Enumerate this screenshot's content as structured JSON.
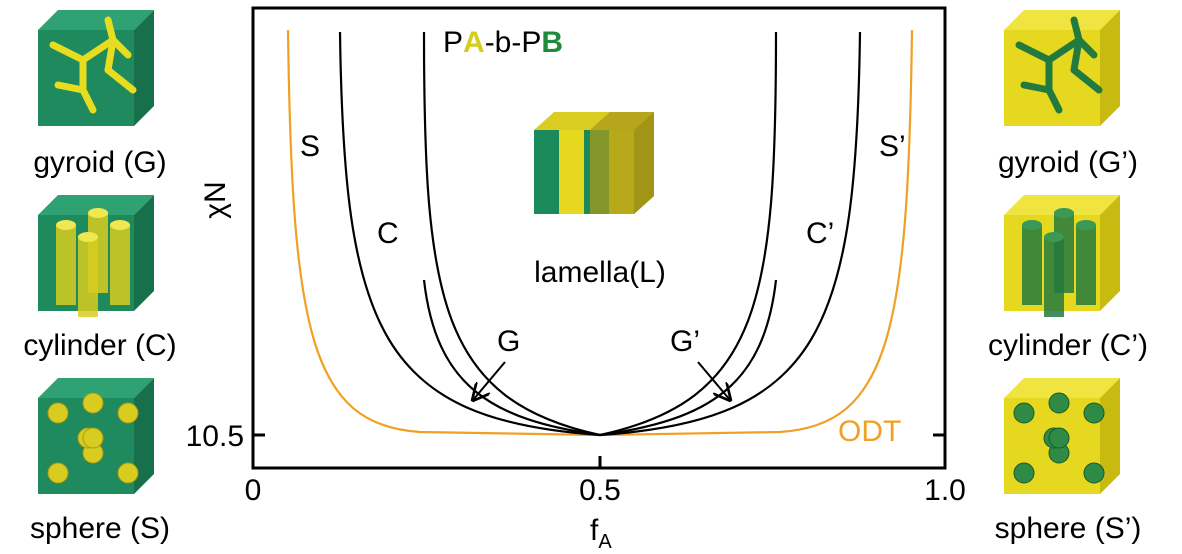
{
  "title": {
    "p1": "P",
    "a": "A",
    "mid": "-b-P",
    "b": "B"
  },
  "axes": {
    "y_label": "χN",
    "x_label": "f",
    "x_label_sub": "A",
    "x_ticks": [
      "0",
      "0.5",
      "1.0"
    ],
    "y_ticks": [
      "10.5"
    ]
  },
  "regions": {
    "s": "S",
    "c": "C",
    "s2": "S’",
    "c2": "C’",
    "g": "G",
    "g2": "G’",
    "odt": "ODT",
    "lamella": "lamella(L)"
  },
  "structures": {
    "left": [
      "gyroid (G)",
      "cylinder (C)",
      "sphere (S)"
    ],
    "right": [
      "gyroid (G’)",
      "cylinder (C’)",
      "sphere (S’)"
    ]
  }
}
